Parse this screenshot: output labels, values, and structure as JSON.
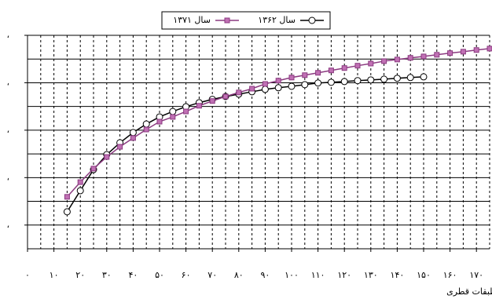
{
  "chart_data": {
    "type": "line",
    "x_label": "طبقات قطری",
    "xlim": [
      0,
      175
    ],
    "ylim": [
      0,
      90
    ],
    "xticks": [
      {
        "value": 0,
        "label": "٠"
      },
      {
        "value": 10,
        "label": "۱۰"
      },
      {
        "value": 20,
        "label": "۲۰"
      },
      {
        "value": 30,
        "label": "۳۰"
      },
      {
        "value": 40,
        "label": "۴۰"
      },
      {
        "value": 50,
        "label": "۵۰"
      },
      {
        "value": 60,
        "label": "۶۰"
      },
      {
        "value": 70,
        "label": "۷۰"
      },
      {
        "value": 80,
        "label": "۸۰"
      },
      {
        "value": 90,
        "label": "۹۰"
      },
      {
        "value": 100,
        "label": "۱۰۰"
      },
      {
        "value": 110,
        "label": "۱۱۰"
      },
      {
        "value": 120,
        "label": "۱۲۰"
      },
      {
        "value": 130,
        "label": "۱۳۰"
      },
      {
        "value": 140,
        "label": "۱۴۰"
      },
      {
        "value": 150,
        "label": "۱۵۰"
      },
      {
        "value": 160,
        "label": "۱۶۰"
      },
      {
        "value": 170,
        "label": "۱۷۰"
      }
    ],
    "x_minor_grid": [
      5,
      15,
      25,
      35,
      45,
      55,
      65,
      75,
      85,
      95,
      105,
      115,
      125,
      135,
      145,
      155,
      165,
      175
    ],
    "yticks": [
      {
        "value": 10,
        "label": "،"
      },
      {
        "value": 30,
        "label": "،"
      },
      {
        "value": 50,
        "label": "،"
      },
      {
        "value": 70,
        "label": "،"
      },
      {
        "value": 90,
        "label": "،"
      }
    ],
    "y_minor_grid": [
      0,
      20,
      40,
      60,
      80
    ],
    "grid": true,
    "legend": "top",
    "series": [
      {
        "name": "سال ۱۳۶۲",
        "color": "#000000",
        "marker": "circle",
        "x": [
          15,
          20,
          25,
          30,
          35,
          40,
          45,
          50,
          55,
          60,
          65,
          70,
          75,
          80,
          85,
          90,
          95,
          100,
          105,
          110,
          115,
          120,
          125,
          130,
          135,
          140,
          145,
          150
        ],
        "values": [
          15.6,
          24.5,
          33.4,
          39.7,
          44.7,
          49,
          52.6,
          55.6,
          57.9,
          59.9,
          61.6,
          63,
          64.2,
          65.2,
          66.2,
          67.2,
          67.9,
          68.5,
          69.2,
          69.9,
          70.2,
          70.5,
          70.9,
          71.2,
          71.5,
          71.9,
          72.2,
          72.5
        ]
      },
      {
        "name": "سال ۱۳۷۱",
        "color": "#8b3a80",
        "marker": "square",
        "x": [
          15,
          20,
          25,
          30,
          35,
          40,
          45,
          50,
          55,
          60,
          65,
          70,
          75,
          80,
          85,
          90,
          95,
          100,
          105,
          110,
          115,
          120,
          125,
          130,
          135,
          140,
          145,
          150,
          155,
          160,
          165,
          170,
          175
        ],
        "values": [
          21.9,
          28.1,
          33.8,
          38.7,
          43,
          46.7,
          50.3,
          53.6,
          55.6,
          57.9,
          60.3,
          62.3,
          64.2,
          65.9,
          67.5,
          69.5,
          70.9,
          72.2,
          73.2,
          74.2,
          75.2,
          76.2,
          77.2,
          78.1,
          79.1,
          79.8,
          80.5,
          81.1,
          81.8,
          82.5,
          83.1,
          83.8,
          84.4
        ]
      }
    ]
  }
}
